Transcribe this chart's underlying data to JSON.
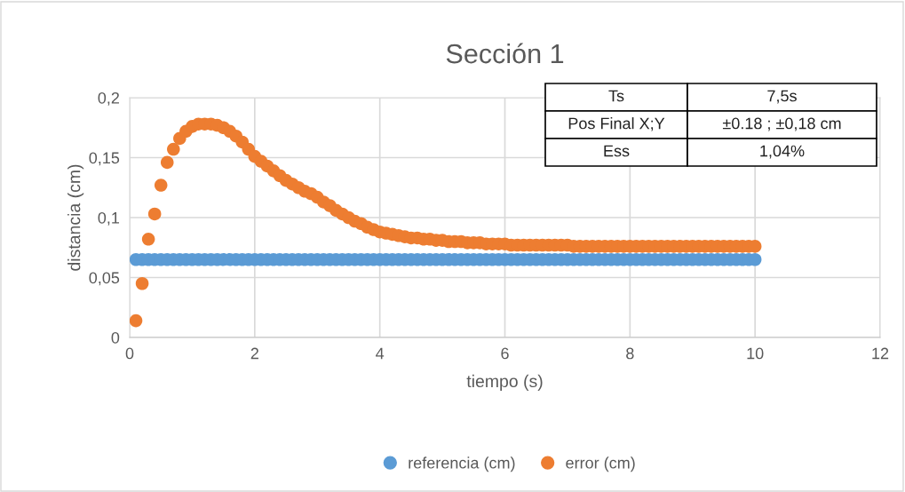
{
  "chart_data": {
    "type": "scatter",
    "title": "Sección 1",
    "xlabel": "tiempo (s)",
    "ylabel": "distancia (cm)",
    "xlim": [
      0,
      12
    ],
    "xticks": [
      0,
      2,
      4,
      6,
      8,
      10,
      12
    ],
    "ylim": [
      0,
      0.2
    ],
    "yticks": [
      0,
      {
        "value": 0.05,
        "label": "0,05"
      },
      {
        "value": 0.1,
        "label": "0,1"
      },
      {
        "value": 0.15,
        "label": "0,15"
      },
      {
        "value": 0.2,
        "label": "0,2"
      }
    ],
    "grid": true,
    "legend": "bottom",
    "marker": "circle",
    "annotations": [
      "Ts",
      "7,5s",
      "Pos Final X;Y",
      "±0.18 ; ±0,18 cm",
      "Ess",
      "1,04%"
    ],
    "x": [
      0.1,
      0.2,
      0.3,
      0.4,
      0.5,
      0.6,
      0.7,
      0.8,
      0.9,
      1.0,
      1.1,
      1.2,
      1.3,
      1.4,
      1.5,
      1.6,
      1.7,
      1.8,
      1.9,
      2.0,
      2.1,
      2.2,
      2.3,
      2.4,
      2.5,
      2.6,
      2.7,
      2.8,
      2.9,
      3.0,
      3.1,
      3.2,
      3.3,
      3.4,
      3.5,
      3.6,
      3.7,
      3.8,
      3.9,
      4.0,
      4.1,
      4.2,
      4.3,
      4.4,
      4.5,
      4.6,
      4.7,
      4.8,
      4.9,
      5.0,
      5.1,
      5.2,
      5.3,
      5.4,
      5.5,
      5.6,
      5.7,
      5.8,
      5.9,
      6.0,
      6.1,
      6.2,
      6.3,
      6.4,
      6.5,
      6.6,
      6.7,
      6.8,
      6.9,
      7.0,
      7.1,
      7.2,
      7.3,
      7.4,
      7.5,
      7.6,
      7.7,
      7.8,
      7.9,
      8.0,
      8.1,
      8.2,
      8.3,
      8.4,
      8.5,
      8.6,
      8.7,
      8.8,
      8.9,
      9.0,
      9.1,
      9.2,
      9.3,
      9.4,
      9.5,
      9.6,
      9.7,
      9.8,
      9.9,
      10.0
    ],
    "series": [
      {
        "name": "referencia (cm)",
        "color": "#5b9bd5",
        "values": [
          0.065,
          0.065,
          0.065,
          0.065,
          0.065,
          0.065,
          0.065,
          0.065,
          0.065,
          0.065,
          0.065,
          0.065,
          0.065,
          0.065,
          0.065,
          0.065,
          0.065,
          0.065,
          0.065,
          0.065,
          0.065,
          0.065,
          0.065,
          0.065,
          0.065,
          0.065,
          0.065,
          0.065,
          0.065,
          0.065,
          0.065,
          0.065,
          0.065,
          0.065,
          0.065,
          0.065,
          0.065,
          0.065,
          0.065,
          0.065,
          0.065,
          0.065,
          0.065,
          0.065,
          0.065,
          0.065,
          0.065,
          0.065,
          0.065,
          0.065,
          0.065,
          0.065,
          0.065,
          0.065,
          0.065,
          0.065,
          0.065,
          0.065,
          0.065,
          0.065,
          0.065,
          0.065,
          0.065,
          0.065,
          0.065,
          0.065,
          0.065,
          0.065,
          0.065,
          0.065,
          0.065,
          0.065,
          0.065,
          0.065,
          0.065,
          0.065,
          0.065,
          0.065,
          0.065,
          0.065,
          0.065,
          0.065,
          0.065,
          0.065,
          0.065,
          0.065,
          0.065,
          0.065,
          0.065,
          0.065,
          0.065,
          0.065,
          0.065,
          0.065,
          0.065,
          0.065,
          0.065,
          0.065,
          0.065,
          0.065
        ]
      },
      {
        "name": "error (cm)",
        "color": "#ed7d31",
        "values": [
          0.014,
          0.045,
          0.082,
          0.103,
          0.127,
          0.146,
          0.157,
          0.166,
          0.172,
          0.176,
          0.178,
          0.178,
          0.178,
          0.177,
          0.175,
          0.172,
          0.168,
          0.163,
          0.157,
          0.151,
          0.147,
          0.143,
          0.139,
          0.135,
          0.131,
          0.128,
          0.125,
          0.122,
          0.12,
          0.117,
          0.113,
          0.11,
          0.106,
          0.103,
          0.1,
          0.097,
          0.095,
          0.092,
          0.09,
          0.088,
          0.087,
          0.086,
          0.085,
          0.084,
          0.083,
          0.083,
          0.082,
          0.082,
          0.081,
          0.081,
          0.08,
          0.08,
          0.08,
          0.079,
          0.079,
          0.079,
          0.078,
          0.078,
          0.078,
          0.078,
          0.077,
          0.077,
          0.077,
          0.077,
          0.077,
          0.077,
          0.077,
          0.077,
          0.077,
          0.077,
          0.076,
          0.076,
          0.076,
          0.076,
          0.076,
          0.076,
          0.076,
          0.076,
          0.076,
          0.076,
          0.076,
          0.076,
          0.076,
          0.076,
          0.076,
          0.076,
          0.076,
          0.076,
          0.076,
          0.076,
          0.076,
          0.076,
          0.076,
          0.076,
          0.076,
          0.076,
          0.076,
          0.076,
          0.076,
          0.076
        ]
      }
    ]
  }
}
